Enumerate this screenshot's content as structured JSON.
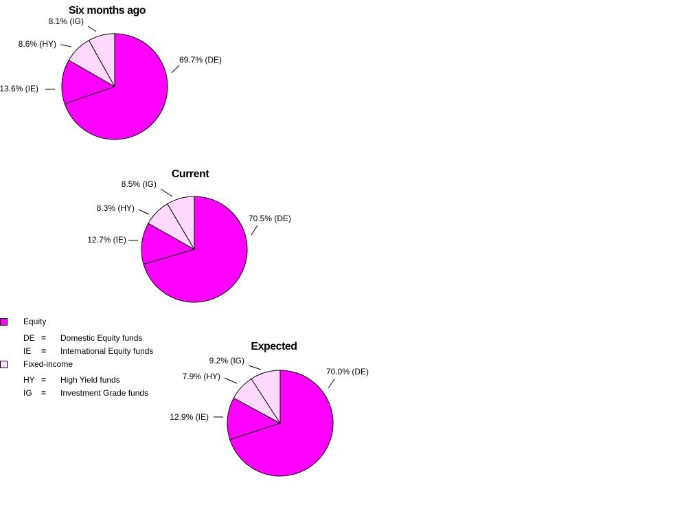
{
  "colors": {
    "equity": "#ff00ff",
    "fixed_income": "#ffd9ff",
    "outline": "#000000"
  },
  "legend": {
    "groups": [
      {
        "label": "Equity",
        "color": "#ff00ff",
        "items": [
          {
            "abbr": "DE",
            "eq": "=",
            "desc": "Domestic Equity funds"
          },
          {
            "abbr": "IE",
            "eq": "=",
            "desc": "International Equity funds"
          }
        ]
      },
      {
        "label": "Fixed-income",
        "color": "#ffd9ff",
        "items": [
          {
            "abbr": "HY",
            "eq": "=",
            "desc": "High Yield funds"
          },
          {
            "abbr": "IG",
            "eq": "=",
            "desc": "Investment Grade funds"
          }
        ]
      }
    ]
  },
  "chart_data": [
    {
      "type": "pie",
      "title": "Six months ago",
      "slices": [
        {
          "key": "DE",
          "value": 69.7,
          "label": "69.7% (DE)",
          "group": "equity"
        },
        {
          "key": "IE",
          "value": 13.6,
          "label": "13.6% (IE)",
          "group": "equity"
        },
        {
          "key": "HY",
          "value": 8.6,
          "label": "8.6% (HY)",
          "group": "fixed_income"
        },
        {
          "key": "IG",
          "value": 8.1,
          "label": "8.1% (IG)",
          "group": "fixed_income"
        }
      ]
    },
    {
      "type": "pie",
      "title": "Current",
      "slices": [
        {
          "key": "DE",
          "value": 70.5,
          "label": "70.5% (DE)",
          "group": "equity"
        },
        {
          "key": "IE",
          "value": 12.7,
          "label": "12.7% (IE)",
          "group": "equity"
        },
        {
          "key": "HY",
          "value": 8.3,
          "label": "8.3% (HY)",
          "group": "fixed_income"
        },
        {
          "key": "IG",
          "value": 8.5,
          "label": "8.5% (IG)",
          "group": "fixed_income"
        }
      ]
    },
    {
      "type": "pie",
      "title": "Expected",
      "slices": [
        {
          "key": "DE",
          "value": 70.0,
          "label": "70.0% (DE)",
          "group": "equity"
        },
        {
          "key": "IE",
          "value": 12.9,
          "label": "12.9% (IE)",
          "group": "equity"
        },
        {
          "key": "HY",
          "value": 7.9,
          "label": "7.9% (HY)",
          "group": "fixed_income"
        },
        {
          "key": "IG",
          "value": 9.2,
          "label": "9.2% (IG)",
          "group": "fixed_income"
        }
      ]
    }
  ]
}
